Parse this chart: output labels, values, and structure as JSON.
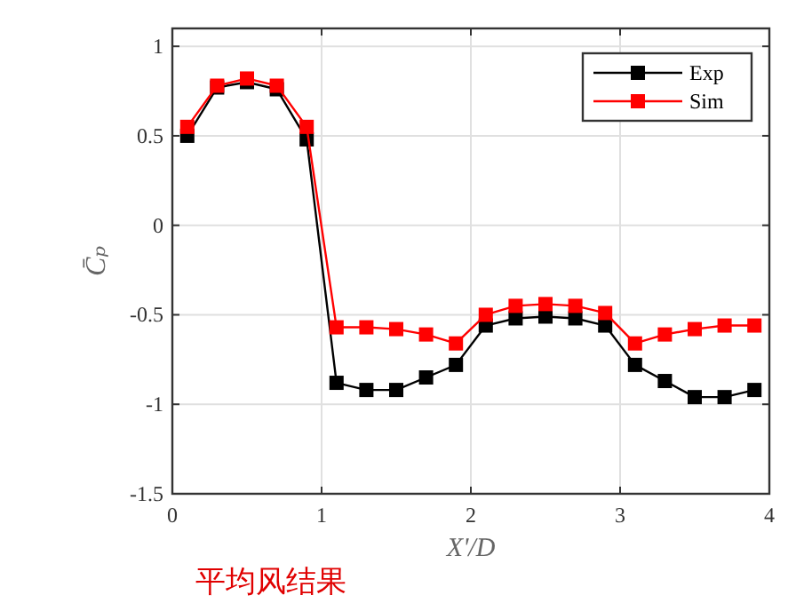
{
  "chart_data": {
    "type": "line",
    "xlabel": "X'/D",
    "ylabel": "C̄ₚ",
    "annotations": [
      "平均风结果"
    ],
    "x": [
      0.1,
      0.3,
      0.5,
      0.7,
      0.9,
      1.1,
      1.3,
      1.5,
      1.7,
      1.9,
      2.1,
      2.3,
      2.5,
      2.7,
      2.9,
      3.1,
      3.3,
      3.5,
      3.7,
      3.9
    ],
    "series": [
      {
        "name": "Exp",
        "color": "#000000",
        "values": [
          0.5,
          0.77,
          0.8,
          0.76,
          0.48,
          -0.88,
          -0.92,
          -0.92,
          -0.85,
          -0.78,
          -0.56,
          -0.52,
          -0.51,
          -0.52,
          -0.56,
          -0.78,
          -0.87,
          -0.96,
          -0.96,
          -0.92
        ]
      },
      {
        "name": "Sim",
        "color": "#ff0000",
        "values": [
          0.55,
          0.78,
          0.82,
          0.78,
          0.55,
          -0.57,
          -0.57,
          -0.58,
          -0.61,
          -0.66,
          -0.5,
          -0.45,
          -0.44,
          -0.45,
          -0.49,
          -0.66,
          -0.61,
          -0.58,
          -0.56,
          -0.56
        ]
      }
    ],
    "xlim": [
      0,
      4
    ],
    "ylim": [
      -1.5,
      1.1
    ],
    "xticks": [
      0,
      1,
      2,
      3,
      4
    ],
    "yticks": [
      -1.5,
      -1,
      -0.5,
      0,
      0.5,
      1
    ],
    "grid": true,
    "legend": "top right",
    "marker": "square",
    "line_style": "solid"
  }
}
